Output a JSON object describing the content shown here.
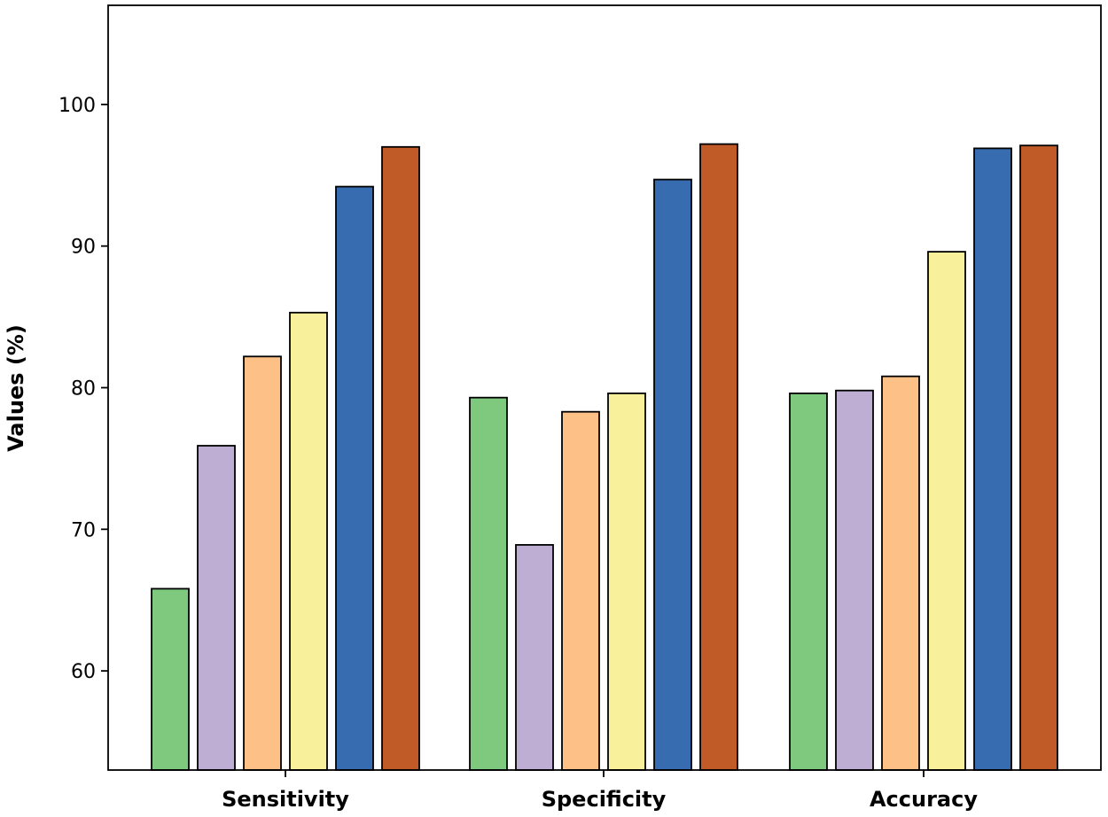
{
  "chart_data": {
    "type": "bar",
    "title": "",
    "xlabel": "",
    "ylabel": "Values (%)",
    "ylim": [
      53,
      107
    ],
    "yticks": [
      60,
      70,
      80,
      90,
      100
    ],
    "grid": false,
    "legend": "none",
    "categories": [
      "Sensitivity",
      "Specificity",
      "Accuracy"
    ],
    "series": [
      {
        "color": "#7fc97f",
        "values": [
          65.8,
          79.3,
          79.6
        ]
      },
      {
        "color": "#beaed4",
        "values": [
          75.9,
          68.9,
          79.8
        ]
      },
      {
        "color": "#fdc086",
        "values": [
          82.2,
          78.3,
          80.8
        ]
      },
      {
        "color": "#f8f09a",
        "values": [
          85.3,
          79.6,
          89.6
        ]
      },
      {
        "color": "#386cb0",
        "values": [
          94.2,
          94.7,
          96.9
        ]
      },
      {
        "color": "#c05a27",
        "values": [
          97.0,
          97.2,
          97.1
        ]
      }
    ]
  }
}
